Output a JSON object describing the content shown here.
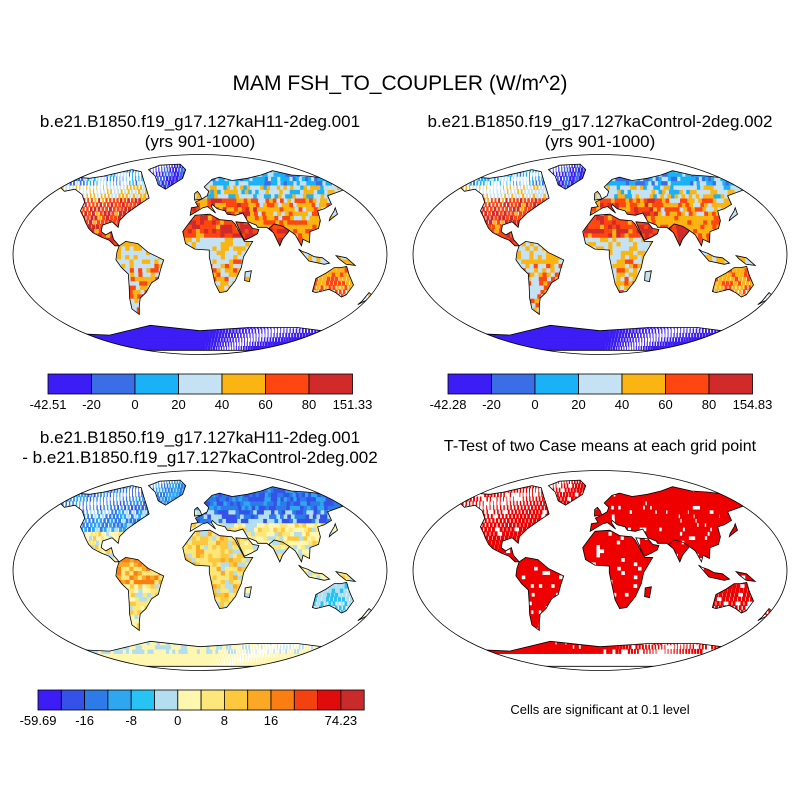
{
  "figure": {
    "title": "MAM FSH_TO_COUPLER (W/m^2)",
    "note": "Cells are significant at 0.1 level"
  },
  "panels": [
    {
      "title": "b.e21.B1850.f19_g17.127kaH11-2deg.001",
      "subtitle": "(yrs 901-1000)",
      "colorbar": {
        "colors": [
          "#3c1df5",
          "#3b6de6",
          "#1bb1f6",
          "#c4e2f3",
          "#fbb512",
          "#fd4610",
          "#d02a2a"
        ],
        "labels": [
          "-42.51",
          "-20",
          "0",
          "20",
          "40",
          "60",
          "80",
          "151.33"
        ]
      }
    },
    {
      "title": "b.e21.B1850.f19_g17.127kaControl-2deg.002",
      "subtitle": "(yrs 901-1000)",
      "colorbar": {
        "colors": [
          "#3c1df5",
          "#3b6de6",
          "#1bb1f6",
          "#c4e2f3",
          "#fbb512",
          "#fd4610",
          "#d02a2a"
        ],
        "labels": [
          "-42.28",
          "-20",
          "0",
          "20",
          "40",
          "60",
          "80",
          "154.83"
        ]
      }
    },
    {
      "title": "b.e21.B1850.f19_g17.127kaH11-2deg.001",
      "subtitle": "- b.e21.B1850.f19_g17.127kaControl-2deg.002",
      "colorbar": {
        "colors": [
          "#3c1df5",
          "#3452e8",
          "#2c7be8",
          "#2ea6f0",
          "#27c3f4",
          "#b3def0",
          "#fff7b0",
          "#fde77a",
          "#fcc93e",
          "#fba824",
          "#fb7e12",
          "#f3410f",
          "#e00b0b",
          "#c92a2a"
        ],
        "labels": [
          "-59.69",
          "",
          "-16",
          "",
          "-8",
          "",
          "0",
          "",
          "8",
          "",
          "16",
          "",
          "",
          "74.23"
        ]
      }
    },
    {
      "title": "T-Test of two Case means at each grid point",
      "significance_color": "#ee0000"
    }
  ]
}
